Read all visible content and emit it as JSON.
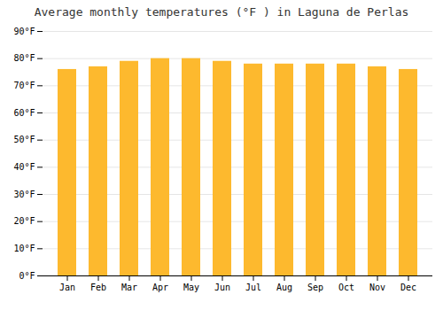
{
  "chart_data": {
    "type": "bar",
    "title": "Average monthly temperatures (°F ) in Laguna de Perlas",
    "categories": [
      "Jan",
      "Feb",
      "Mar",
      "Apr",
      "May",
      "Jun",
      "Jul",
      "Aug",
      "Sep",
      "Oct",
      "Nov",
      "Dec"
    ],
    "values": [
      76,
      77,
      79,
      80,
      80,
      79,
      78,
      78,
      78,
      78,
      77,
      76
    ],
    "color": "#FDB92E",
    "ylim": [
      0,
      90
    ],
    "yticks": [
      {
        "value": 0,
        "label": "0°F"
      },
      {
        "value": 10,
        "label": "10°F"
      },
      {
        "value": 20,
        "label": "20°F"
      },
      {
        "value": 30,
        "label": "30°F"
      },
      {
        "value": 40,
        "label": "40°F"
      },
      {
        "value": 50,
        "label": "50°F"
      },
      {
        "value": 60,
        "label": "60°F"
      },
      {
        "value": 70,
        "label": "70°F"
      },
      {
        "value": 80,
        "label": "80°F"
      },
      {
        "value": 90,
        "label": "90°F"
      }
    ],
    "grid": true
  }
}
